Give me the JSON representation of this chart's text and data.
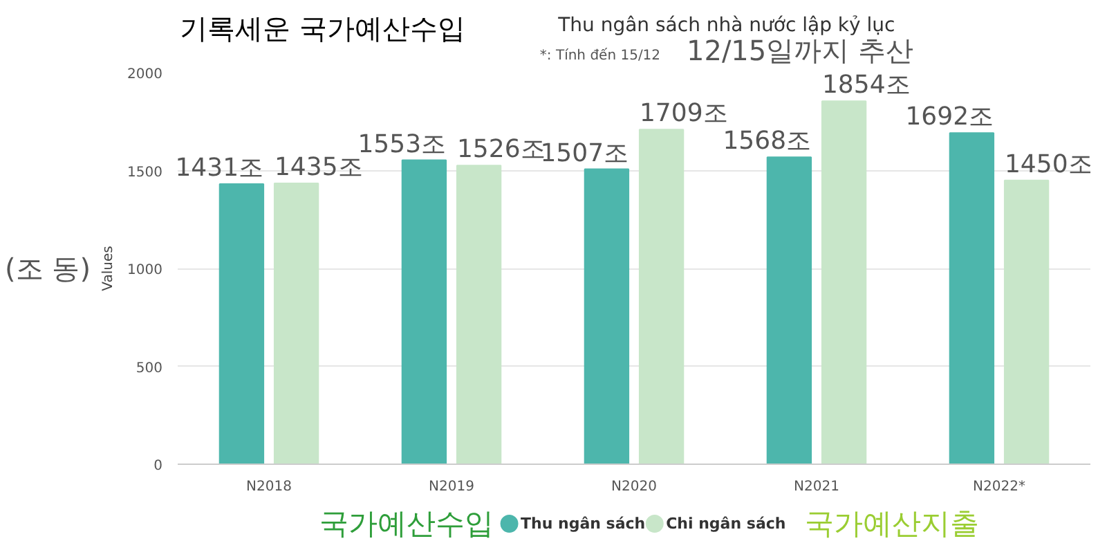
{
  "chart_data": {
    "type": "bar",
    "title": "기록세운 국가예산수입",
    "subtitle": "Thu ngân sách nhà nước lập kỷ lục",
    "ylabel": "Values",
    "categories": [
      "N2018",
      "N2019",
      "N2020",
      "N2021",
      "N2022*"
    ],
    "series": [
      {
        "name": "Thu ngân sách",
        "color": "#4db6ac",
        "values": [
          1431,
          1553,
          1507,
          1568,
          1692
        ],
        "value_labels": [
          "1431조",
          "1553조",
          "1507조",
          "1568조",
          "1692조"
        ]
      },
      {
        "name": "Chi ngân sách",
        "color": "#c8e6c9",
        "values": [
          1435,
          1526,
          1709,
          1854,
          1450
        ],
        "value_labels": [
          "1435조",
          "1526조",
          "1709조",
          "1854조",
          "1450조"
        ]
      }
    ],
    "ylim": [
      0,
      2000
    ],
    "yticks": [
      0,
      500,
      1000,
      1500,
      2000
    ],
    "grid": "y",
    "legend": "bottom",
    "annotations": [
      "*: Tính đến 15/12",
      "12/15일까지 추산",
      "(조 동)",
      "국가예산수입",
      "국가예산지출"
    ]
  }
}
